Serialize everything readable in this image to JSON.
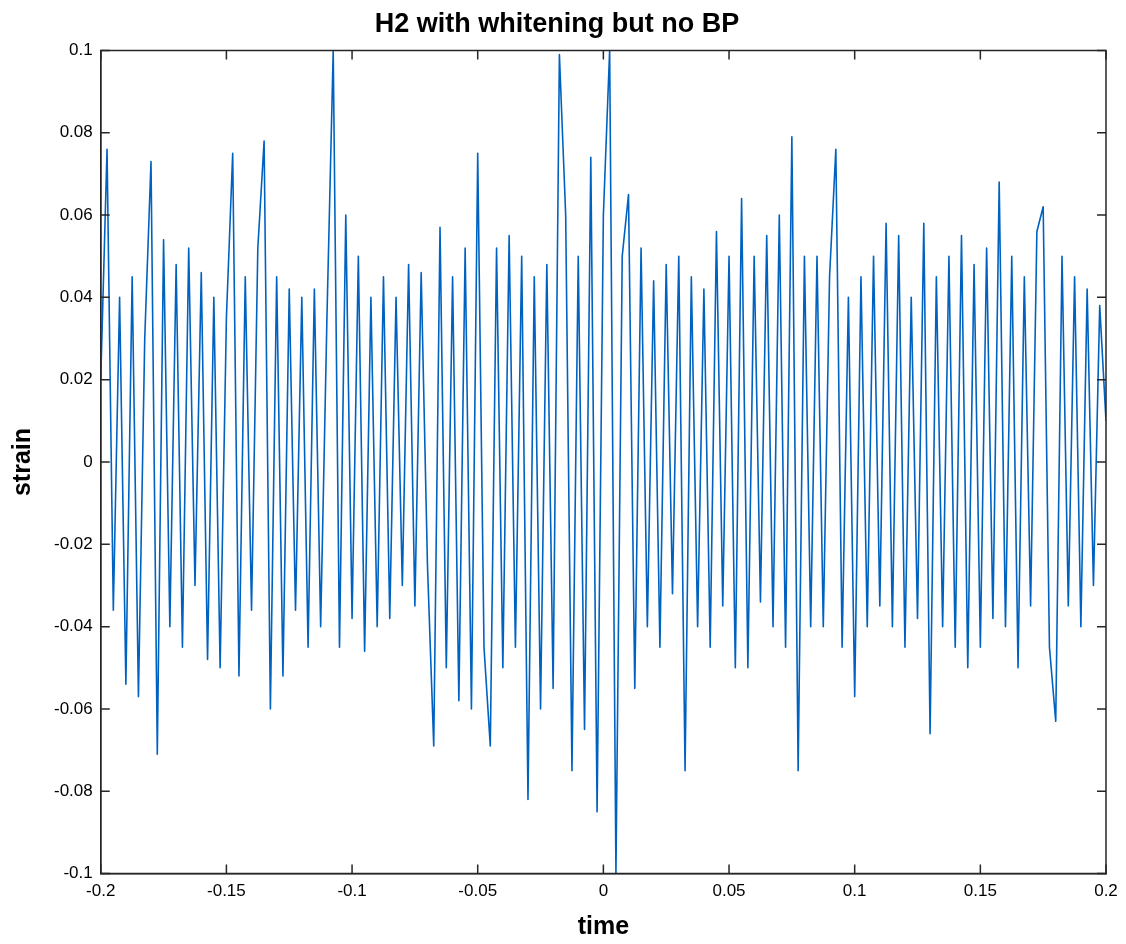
{
  "chart_data": {
    "type": "line",
    "title": "H2 with whitening but no BP",
    "xlabel": "time",
    "ylabel": "strain",
    "xlim": [
      -0.2,
      0.2
    ],
    "xticks": [
      -0.2,
      -0.15,
      -0.1,
      -0.05,
      0,
      0.05,
      0.1,
      0.15,
      0.2
    ],
    "ylim": [
      -0.1,
      0.1
    ],
    "yticks": [
      -0.1,
      -0.08,
      -0.06,
      -0.04,
      -0.02,
      0,
      0.02,
      0.04,
      0.06,
      0.08,
      0.1
    ],
    "grid": false,
    "legend": false,
    "marker": "none",
    "line_style": "solid",
    "series": [
      {
        "color": "#0062c0",
        "x": [
          -0.2,
          -0.1975,
          -0.195,
          -0.1925,
          -0.19,
          -0.1875,
          -0.185,
          -0.1825,
          -0.18,
          -0.1775,
          -0.175,
          -0.1725,
          -0.17,
          -0.1675,
          -0.165,
          -0.1625,
          -0.16,
          -0.1575,
          -0.155,
          -0.1525,
          -0.15,
          -0.1475,
          -0.145,
          -0.1425,
          -0.14,
          -0.1375,
          -0.135,
          -0.1325,
          -0.13,
          -0.1275,
          -0.125,
          -0.1225,
          -0.12,
          -0.1175,
          -0.115,
          -0.1125,
          -0.11,
          -0.1075,
          -0.105,
          -0.1025,
          -0.1,
          -0.0975,
          -0.095,
          -0.0925,
          -0.09,
          -0.0875,
          -0.085,
          -0.0825,
          -0.08,
          -0.0775,
          -0.075,
          -0.0725,
          -0.07,
          -0.0675,
          -0.065,
          -0.0625,
          -0.06,
          -0.0575,
          -0.055,
          -0.0525,
          -0.05,
          -0.0475,
          -0.045,
          -0.0425,
          -0.04,
          -0.0375,
          -0.035,
          -0.0325,
          -0.03,
          -0.0275,
          -0.025,
          -0.0225,
          -0.02,
          -0.0175,
          -0.015,
          -0.0125,
          -0.01,
          -0.0075,
          -0.005,
          -0.0025,
          0,
          0.0025,
          0.005,
          0.0075,
          0.01,
          0.0125,
          0.015,
          0.0175,
          0.02,
          0.0225,
          0.025,
          0.0275,
          0.03,
          0.0325,
          0.035,
          0.0375,
          0.04,
          0.0425,
          0.045,
          0.0475,
          0.05,
          0.0525,
          0.055,
          0.0575,
          0.06,
          0.0625,
          0.065,
          0.0675,
          0.07,
          0.0725,
          0.075,
          0.0775,
          0.08,
          0.0825,
          0.085,
          0.0875,
          0.09,
          0.0925,
          0.095,
          0.0975,
          0.1,
          0.1025,
          0.105,
          0.1075,
          0.11,
          0.1125,
          0.115,
          0.1175,
          0.12,
          0.1225,
          0.125,
          0.1275,
          0.13,
          0.1325,
          0.135,
          0.1375,
          0.14,
          0.1425,
          0.145,
          0.1475,
          0.15,
          0.1525,
          0.155,
          0.1575,
          0.16,
          0.1625,
          0.165,
          0.1675,
          0.17,
          0.1725,
          0.175,
          0.1775,
          0.18,
          0.1825,
          0.185,
          0.1875,
          0.19,
          0.1925,
          0.195,
          0.1975,
          0.2
        ],
        "values": [
          0.02,
          0.076,
          -0.036,
          0.04,
          -0.054,
          0.045,
          -0.057,
          0.03,
          0.073,
          -0.071,
          0.054,
          -0.04,
          0.048,
          -0.045,
          0.052,
          -0.03,
          0.046,
          -0.048,
          0.04,
          -0.05,
          0.035,
          0.075,
          -0.052,
          0.045,
          -0.036,
          0.052,
          0.078,
          -0.06,
          0.045,
          -0.052,
          0.042,
          -0.036,
          0.04,
          -0.045,
          0.042,
          -0.04,
          0.035,
          0.1,
          -0.045,
          0.06,
          -0.038,
          0.05,
          -0.046,
          0.04,
          -0.04,
          0.045,
          -0.038,
          0.04,
          -0.03,
          0.048,
          -0.035,
          0.046,
          -0.025,
          -0.069,
          0.057,
          -0.05,
          0.045,
          -0.058,
          0.052,
          -0.06,
          0.075,
          -0.045,
          -0.069,
          0.052,
          -0.05,
          0.055,
          -0.045,
          0.05,
          -0.082,
          0.045,
          -0.06,
          0.048,
          -0.055,
          0.099,
          0.06,
          -0.075,
          0.05,
          -0.065,
          0.074,
          -0.085,
          0.06,
          0.1,
          -0.1,
          0.05,
          0.065,
          -0.055,
          0.052,
          -0.04,
          0.044,
          -0.045,
          0.048,
          -0.032,
          0.05,
          -0.075,
          0.045,
          -0.04,
          0.042,
          -0.045,
          0.056,
          -0.035,
          0.05,
          -0.05,
          0.064,
          -0.05,
          0.05,
          -0.034,
          0.055,
          -0.04,
          0.06,
          -0.045,
          0.079,
          -0.075,
          0.05,
          -0.04,
          0.05,
          -0.04,
          0.045,
          0.076,
          -0.045,
          0.04,
          -0.057,
          0.045,
          -0.04,
          0.05,
          -0.035,
          0.058,
          -0.04,
          0.055,
          -0.045,
          0.04,
          -0.038,
          0.058,
          -0.066,
          0.045,
          -0.04,
          0.05,
          -0.045,
          0.055,
          -0.05,
          0.048,
          -0.045,
          0.052,
          -0.038,
          0.068,
          -0.04,
          0.05,
          -0.05,
          0.045,
          -0.035,
          0.056,
          0.062,
          -0.045,
          -0.063,
          0.05,
          -0.035,
          0.045,
          -0.04,
          0.042,
          -0.03,
          0.038,
          0.01
        ]
      }
    ]
  }
}
